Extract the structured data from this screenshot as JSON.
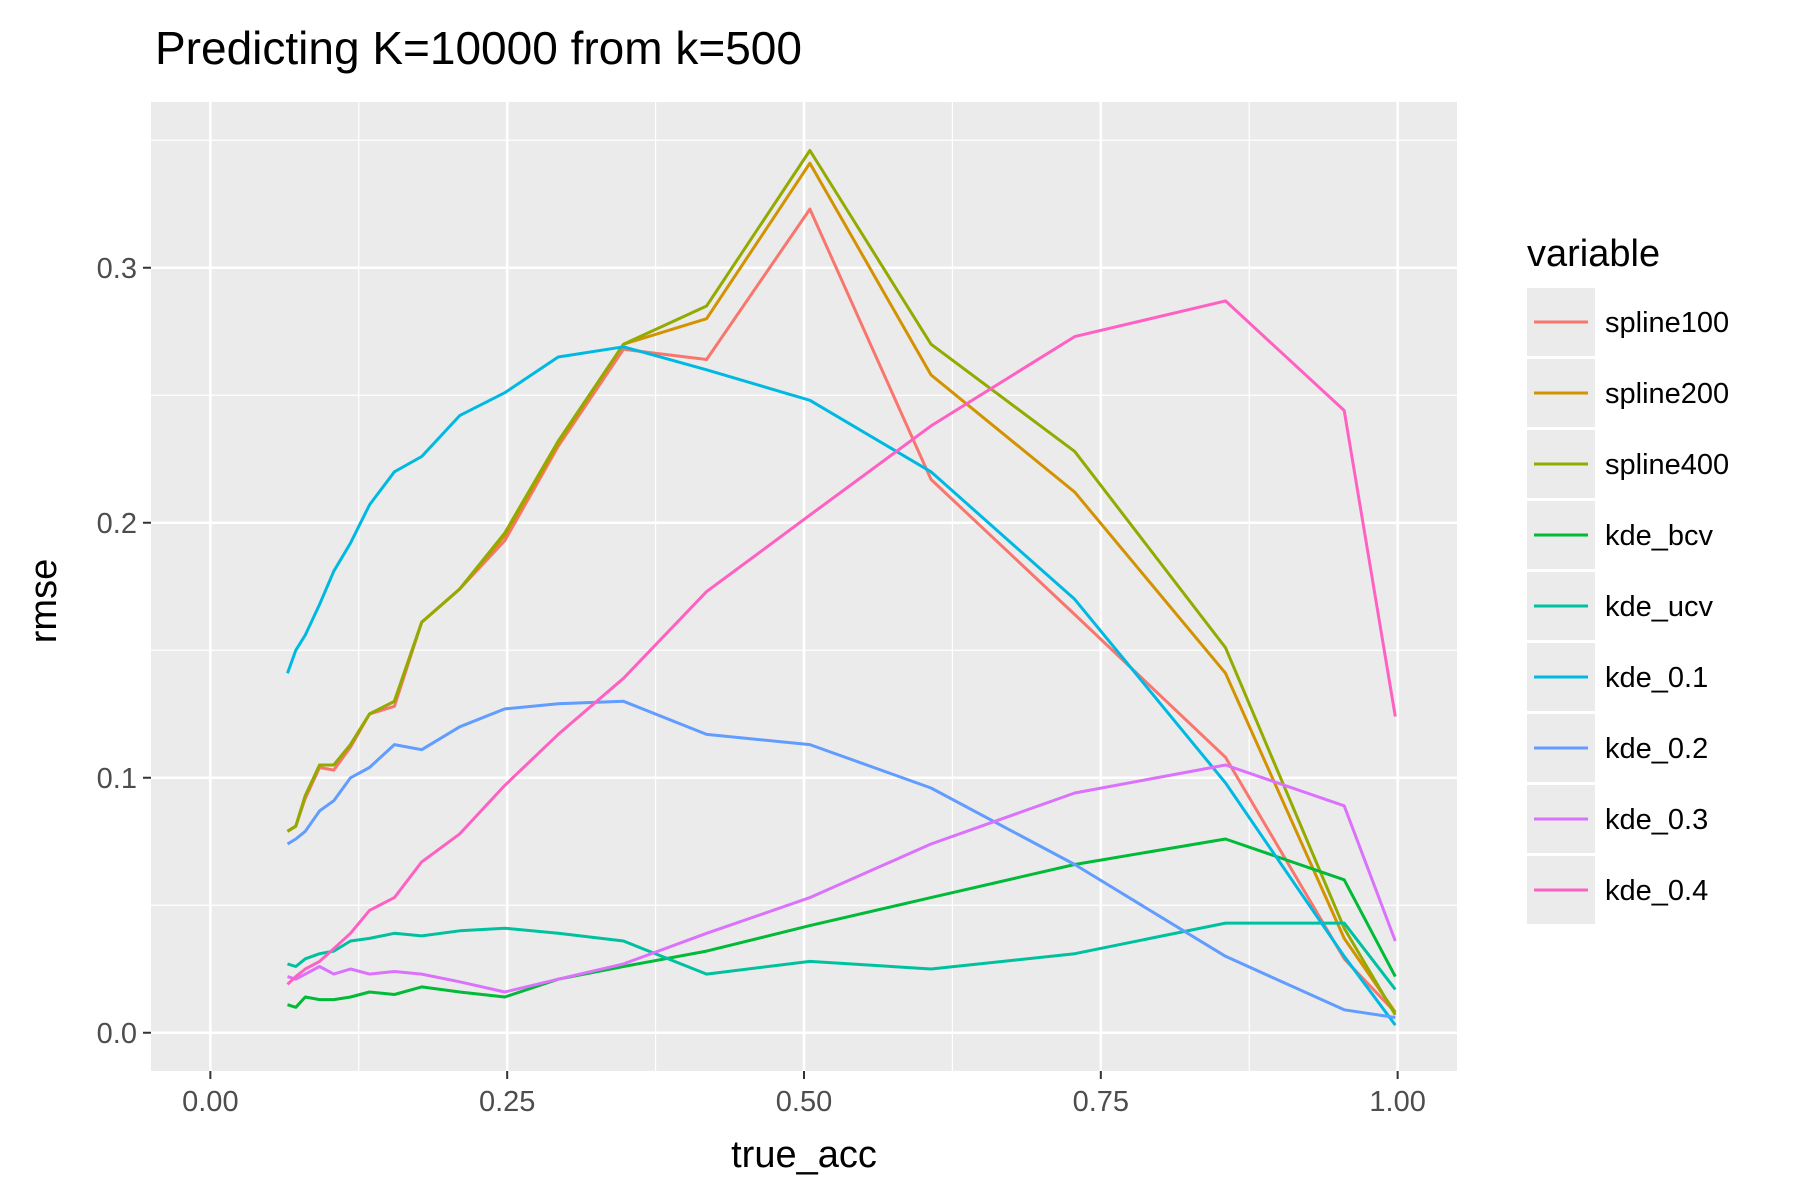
{
  "chart_data": {
    "type": "line",
    "title": "Predicting K=10000 from k=500",
    "xlabel": "true_acc",
    "ylabel": "rmse",
    "xlim": [
      -0.05,
      1.05
    ],
    "ylim": [
      -0.015,
      0.365
    ],
    "x_ticks": [
      0.0,
      0.25,
      0.5,
      0.75,
      1.0
    ],
    "x_tick_labels": [
      "0.00",
      "0.25",
      "0.50",
      "0.75",
      "1.00"
    ],
    "y_ticks": [
      0.0,
      0.1,
      0.2,
      0.3
    ],
    "y_tick_labels": [
      "0.0",
      "0.1",
      "0.2",
      "0.3"
    ],
    "grid": true,
    "legend_title": "variable",
    "legend_position": "right",
    "x": [
      0.065,
      0.072,
      0.08,
      0.092,
      0.104,
      0.118,
      0.134,
      0.155,
      0.178,
      0.21,
      0.248,
      0.293,
      0.348,
      0.418,
      0.505,
      0.607,
      0.728,
      0.855,
      0.955,
      0.998
    ],
    "series": [
      {
        "name": "spline100",
        "color": "#F8766D",
        "values": [
          0.079,
          0.081,
          0.092,
          0.104,
          0.103,
          0.112,
          0.125,
          0.128,
          0.161,
          0.174,
          0.193,
          0.23,
          0.268,
          0.264,
          0.323,
          0.217,
          0.164,
          0.108,
          0.029,
          0.008
        ]
      },
      {
        "name": "spline200",
        "color": "#D39200",
        "values": [
          0.079,
          0.081,
          0.093,
          0.105,
          0.105,
          0.113,
          0.125,
          0.13,
          0.161,
          0.174,
          0.195,
          0.231,
          0.27,
          0.28,
          0.341,
          0.258,
          0.212,
          0.141,
          0.037,
          0.008
        ]
      },
      {
        "name": "spline400",
        "color": "#93AA00",
        "values": [
          0.079,
          0.081,
          0.093,
          0.105,
          0.105,
          0.113,
          0.125,
          0.13,
          0.161,
          0.174,
          0.196,
          0.232,
          0.27,
          0.285,
          0.346,
          0.27,
          0.228,
          0.151,
          0.041,
          0.007
        ]
      },
      {
        "name": "kde_bcv",
        "color": "#00BA38",
        "values": [
          0.011,
          0.01,
          0.014,
          0.013,
          0.013,
          0.014,
          0.016,
          0.015,
          0.018,
          0.016,
          0.014,
          0.021,
          0.026,
          0.032,
          0.042,
          0.053,
          0.066,
          0.076,
          0.06,
          0.022
        ]
      },
      {
        "name": "kde_ucv",
        "color": "#00C19F",
        "values": [
          0.027,
          0.026,
          0.029,
          0.031,
          0.032,
          0.036,
          0.037,
          0.039,
          0.038,
          0.04,
          0.041,
          0.039,
          0.036,
          0.023,
          0.028,
          0.025,
          0.031,
          0.043,
          0.043,
          0.017
        ]
      },
      {
        "name": "kde_0.1",
        "color": "#00B9E3",
        "values": [
          0.141,
          0.15,
          0.156,
          0.168,
          0.181,
          0.192,
          0.207,
          0.22,
          0.226,
          0.242,
          0.251,
          0.265,
          0.269,
          0.26,
          0.248,
          0.22,
          0.17,
          0.098,
          0.03,
          0.003
        ]
      },
      {
        "name": "kde_0.2",
        "color": "#619CFF",
        "values": [
          0.074,
          0.076,
          0.079,
          0.087,
          0.091,
          0.1,
          0.104,
          0.113,
          0.111,
          0.12,
          0.127,
          0.129,
          0.13,
          0.117,
          0.113,
          0.096,
          0.066,
          0.03,
          0.009,
          0.006
        ]
      },
      {
        "name": "kde_0.3",
        "color": "#DB72FB",
        "values": [
          0.022,
          0.021,
          0.023,
          0.026,
          0.023,
          0.025,
          0.023,
          0.024,
          0.023,
          0.02,
          0.016,
          0.021,
          0.027,
          0.039,
          0.053,
          0.074,
          0.094,
          0.105,
          0.089,
          0.036
        ]
      },
      {
        "name": "kde_0.4",
        "color": "#FF61C3",
        "values": [
          0.019,
          0.022,
          0.025,
          0.028,
          0.033,
          0.039,
          0.048,
          0.053,
          0.067,
          0.078,
          0.097,
          0.117,
          0.139,
          0.173,
          0.203,
          0.238,
          0.273,
          0.287,
          0.244,
          0.124
        ]
      }
    ]
  }
}
